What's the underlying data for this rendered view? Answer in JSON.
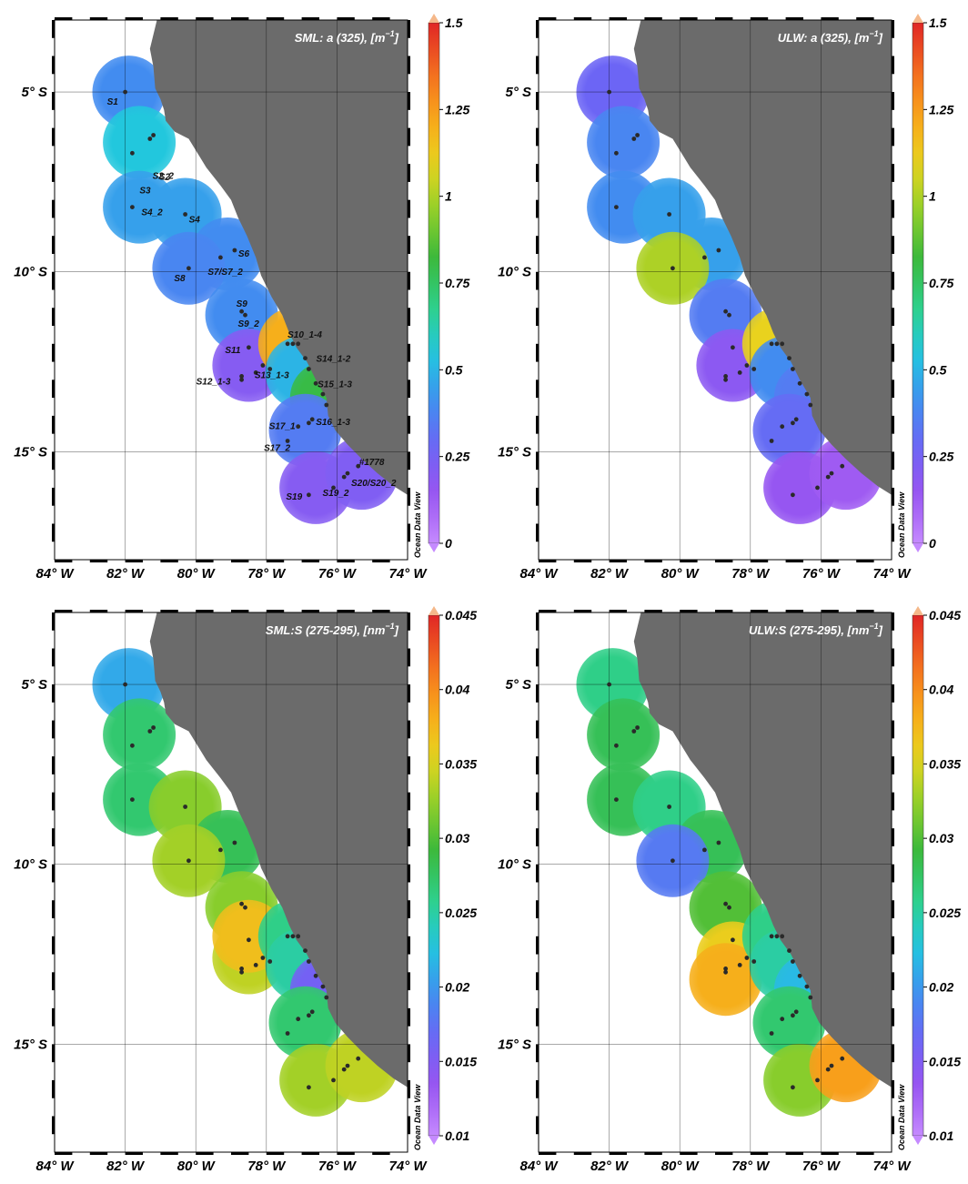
{
  "colors": {
    "land": "#6b6b6b",
    "grid": "#000000",
    "station": "#2a2a2a",
    "ramp": [
      "#c58aff",
      "#9a55f0",
      "#6f63f5",
      "#3f8ff0",
      "#22c7e0",
      "#2fd08a",
      "#39b83c",
      "#8fcf2a",
      "#e8d51e",
      "#f9a61a",
      "#f26a1f",
      "#e02626",
      "#f5b88a"
    ]
  },
  "axes": {
    "x_ticks": [
      "84° W",
      "82° W",
      "80° W",
      "78° W",
      "76° W",
      "74° W"
    ],
    "y_ticks": [
      "5° S",
      "10° S",
      "15° S"
    ]
  },
  "watermark": "Ocean Data View",
  "panels": [
    {
      "id": "sml-a325",
      "title": "SML: a (325), [m",
      "title_sup": "−1",
      "title_end": "]",
      "colorbar": {
        "ticks": [
          "1.5",
          "1.25",
          "1",
          "0.75",
          "0.5",
          "0.25",
          "0"
        ],
        "min": 0,
        "max": 1.5
      },
      "regions": [
        {
          "lon": -81.9,
          "lat": -5.0,
          "v": 0.4
        },
        {
          "lon": -81.6,
          "lat": -6.4,
          "v": 0.55
        },
        {
          "lon": -81.6,
          "lat": -8.2,
          "v": 0.45
        },
        {
          "lon": -80.3,
          "lat": -8.4,
          "v": 0.45
        },
        {
          "lon": -79.1,
          "lat": -9.5,
          "v": 0.4
        },
        {
          "lon": -80.2,
          "lat": -9.9,
          "v": 0.38
        },
        {
          "lon": -78.7,
          "lat": -11.2,
          "v": 0.4
        },
        {
          "lon": -78.5,
          "lat": -12.6,
          "v": 0.2
        },
        {
          "lon": -77.2,
          "lat": -12.0,
          "v": 1.2
        },
        {
          "lon": -77.0,
          "lat": -12.8,
          "v": 0.5
        },
        {
          "lon": -76.3,
          "lat": -13.5,
          "v": 0.8
        },
        {
          "lon": -76.9,
          "lat": -14.4,
          "v": 0.35
        },
        {
          "lon": -76.6,
          "lat": -16.0,
          "v": 0.2
        },
        {
          "lon": -75.3,
          "lat": -15.6,
          "v": 0.22
        }
      ],
      "stations": [
        {
          "name": "S1",
          "lon": -82.0,
          "lat": -5.0
        },
        {
          "name": "S2",
          "lon": -81.3,
          "lat": -6.3
        },
        {
          "name": "S2_2",
          "lon": -81.2,
          "lat": -6.2
        },
        {
          "name": "S3",
          "lon": -81.8,
          "lat": -6.7
        },
        {
          "name": "S4_2",
          "lon": -81.8,
          "lat": -8.2
        },
        {
          "name": "S4",
          "lon": -80.3,
          "lat": -8.4
        },
        {
          "name": "S6",
          "lon": -78.9,
          "lat": -9.4
        },
        {
          "name": "S7/S7_2",
          "lon": -79.3,
          "lat": -9.6
        },
        {
          "name": "S8",
          "lon": -80.2,
          "lat": -9.9
        },
        {
          "name": "S9",
          "lon": -78.7,
          "lat": -11.1
        },
        {
          "name": "S9_2",
          "lon": -78.6,
          "lat": -11.2
        },
        {
          "name": "S11",
          "lon": -78.5,
          "lat": -12.1
        },
        {
          "name": "S10_1-4",
          "lon": -77.4,
          "lat": -12.0
        },
        {
          "name": "",
          "lon": -77.25,
          "lat": -12.0
        },
        {
          "name": "",
          "lon": -77.1,
          "lat": -12.0
        },
        {
          "name": "S14_1-2",
          "lon": -76.9,
          "lat": -12.4
        },
        {
          "name": "",
          "lon": -76.8,
          "lat": -12.7
        },
        {
          "name": "S13_1-3",
          "lon": -78.1,
          "lat": -12.6
        },
        {
          "name": "",
          "lon": -77.9,
          "lat": -12.7
        },
        {
          "name": "",
          "lon": -78.3,
          "lat": -12.8
        },
        {
          "name": "S12_1-3",
          "lon": -78.7,
          "lat": -12.9
        },
        {
          "name": "",
          "lon": -78.7,
          "lat": -13.0
        },
        {
          "name": "S15_1-3",
          "lon": -76.6,
          "lat": -13.1
        },
        {
          "name": "",
          "lon": -76.4,
          "lat": -13.4
        },
        {
          "name": "",
          "lon": -76.3,
          "lat": -13.7
        },
        {
          "name": "S16_1-3",
          "lon": -76.7,
          "lat": -14.1
        },
        {
          "name": "",
          "lon": -76.8,
          "lat": -14.2
        },
        {
          "name": "S17_1",
          "lon": -77.1,
          "lat": -14.3
        },
        {
          "name": "S17_2",
          "lon": -77.4,
          "lat": -14.7
        },
        {
          "name": "#1778",
          "lon": -75.4,
          "lat": -15.4
        },
        {
          "name": "S20/S20_2",
          "lon": -75.7,
          "lat": -15.6
        },
        {
          "name": "",
          "lon": -75.8,
          "lat": -15.7
        },
        {
          "name": "S19_2",
          "lon": -76.1,
          "lat": -16.0
        },
        {
          "name": "S19",
          "lon": -76.8,
          "lat": -16.2
        }
      ]
    },
    {
      "id": "ulw-a325",
      "title": "ULW: a (325), [m",
      "title_sup": "−1",
      "title_end": "]",
      "colorbar": {
        "ticks": [
          "1.5",
          "1.25",
          "1",
          "0.75",
          "0.5",
          "0.25",
          "0"
        ],
        "min": 0,
        "max": 1.5
      },
      "regions": [
        {
          "lon": -81.9,
          "lat": -5.0,
          "v": 0.28
        },
        {
          "lon": -81.6,
          "lat": -6.4,
          "v": 0.38
        },
        {
          "lon": -81.6,
          "lat": -8.2,
          "v": 0.4
        },
        {
          "lon": -80.3,
          "lat": -8.4,
          "v": 0.45
        },
        {
          "lon": -79.1,
          "lat": -9.5,
          "v": 0.45
        },
        {
          "lon": -80.2,
          "lat": -9.9,
          "v": 1.0
        },
        {
          "lon": -78.7,
          "lat": -11.2,
          "v": 0.35
        },
        {
          "lon": -78.5,
          "lat": -12.6,
          "v": 0.18
        },
        {
          "lon": -77.2,
          "lat": -12.0,
          "v": 1.1
        },
        {
          "lon": -77.0,
          "lat": -12.8,
          "v": 0.4
        },
        {
          "lon": -76.3,
          "lat": -13.5,
          "v": 0.35
        },
        {
          "lon": -76.9,
          "lat": -14.4,
          "v": 0.3
        },
        {
          "lon": -76.6,
          "lat": -16.0,
          "v": 0.15
        },
        {
          "lon": -75.3,
          "lat": -15.6,
          "v": 0.12
        }
      ],
      "stations": [
        {
          "name": "",
          "lon": -82.0,
          "lat": -5.0
        },
        {
          "name": "",
          "lon": -81.3,
          "lat": -6.3
        },
        {
          "name": "",
          "lon": -81.2,
          "lat": -6.2
        },
        {
          "name": "",
          "lon": -81.8,
          "lat": -6.7
        },
        {
          "name": "",
          "lon": -81.8,
          "lat": -8.2
        },
        {
          "name": "",
          "lon": -80.3,
          "lat": -8.4
        },
        {
          "name": "",
          "lon": -78.9,
          "lat": -9.4
        },
        {
          "name": "",
          "lon": -79.3,
          "lat": -9.6
        },
        {
          "name": "",
          "lon": -80.2,
          "lat": -9.9
        },
        {
          "name": "",
          "lon": -78.7,
          "lat": -11.1
        },
        {
          "name": "",
          "lon": -78.6,
          "lat": -11.2
        },
        {
          "name": "",
          "lon": -78.5,
          "lat": -12.1
        },
        {
          "name": "",
          "lon": -77.4,
          "lat": -12.0
        },
        {
          "name": "",
          "lon": -77.25,
          "lat": -12.0
        },
        {
          "name": "",
          "lon": -77.1,
          "lat": -12.0
        },
        {
          "name": "",
          "lon": -76.9,
          "lat": -12.4
        },
        {
          "name": "",
          "lon": -76.8,
          "lat": -12.7
        },
        {
          "name": "",
          "lon": -78.1,
          "lat": -12.6
        },
        {
          "name": "",
          "lon": -77.9,
          "lat": -12.7
        },
        {
          "name": "",
          "lon": -78.3,
          "lat": -12.8
        },
        {
          "name": "",
          "lon": -78.7,
          "lat": -12.9
        },
        {
          "name": "",
          "lon": -78.7,
          "lat": -13.0
        },
        {
          "name": "",
          "lon": -76.6,
          "lat": -13.1
        },
        {
          "name": "",
          "lon": -76.4,
          "lat": -13.4
        },
        {
          "name": "",
          "lon": -76.3,
          "lat": -13.7
        },
        {
          "name": "",
          "lon": -76.7,
          "lat": -14.1
        },
        {
          "name": "",
          "lon": -76.8,
          "lat": -14.2
        },
        {
          "name": "",
          "lon": -77.1,
          "lat": -14.3
        },
        {
          "name": "",
          "lon": -77.4,
          "lat": -14.7
        },
        {
          "name": "",
          "lon": -75.4,
          "lat": -15.4
        },
        {
          "name": "",
          "lon": -75.7,
          "lat": -15.6
        },
        {
          "name": "",
          "lon": -75.8,
          "lat": -15.7
        },
        {
          "name": "",
          "lon": -76.1,
          "lat": -16.0
        },
        {
          "name": "",
          "lon": -76.8,
          "lat": -16.2
        }
      ]
    },
    {
      "id": "sml-s275",
      "title": "SML:S (275-295), [nm",
      "title_sup": "−1",
      "title_end": "]",
      "colorbar": {
        "ticks": [
          "0.045",
          "0.04",
          "0.035",
          "0.03",
          "0.025",
          "0.02",
          "0.015",
          "0.01"
        ],
        "min": 0.01,
        "max": 0.045
      },
      "regions": [
        {
          "lon": -81.9,
          "lat": -5.0,
          "v": 0.021
        },
        {
          "lon": -81.6,
          "lat": -6.4,
          "v": 0.027
        },
        {
          "lon": -81.6,
          "lat": -8.2,
          "v": 0.027
        },
        {
          "lon": -80.3,
          "lat": -8.4,
          "v": 0.032
        },
        {
          "lon": -79.1,
          "lat": -9.5,
          "v": 0.028
        },
        {
          "lon": -80.2,
          "lat": -9.9,
          "v": 0.033
        },
        {
          "lon": -78.7,
          "lat": -11.2,
          "v": 0.032
        },
        {
          "lon": -78.5,
          "lat": -12.6,
          "v": 0.034
        },
        {
          "lon": -78.5,
          "lat": -12.0,
          "v": 0.037
        },
        {
          "lon": -77.2,
          "lat": -12.0,
          "v": 0.026
        },
        {
          "lon": -77.0,
          "lat": -12.8,
          "v": 0.025
        },
        {
          "lon": -76.3,
          "lat": -13.5,
          "v": 0.016
        },
        {
          "lon": -76.9,
          "lat": -14.4,
          "v": 0.027
        },
        {
          "lon": -76.6,
          "lat": -16.0,
          "v": 0.033
        },
        {
          "lon": -75.3,
          "lat": -15.6,
          "v": 0.034
        }
      ],
      "stations": [
        {
          "name": "",
          "lon": -82.0,
          "lat": -5.0
        },
        {
          "name": "",
          "lon": -81.3,
          "lat": -6.3
        },
        {
          "name": "",
          "lon": -81.2,
          "lat": -6.2
        },
        {
          "name": "",
          "lon": -81.8,
          "lat": -6.7
        },
        {
          "name": "",
          "lon": -81.8,
          "lat": -8.2
        },
        {
          "name": "",
          "lon": -80.3,
          "lat": -8.4
        },
        {
          "name": "",
          "lon": -78.9,
          "lat": -9.4
        },
        {
          "name": "",
          "lon": -79.3,
          "lat": -9.6
        },
        {
          "name": "",
          "lon": -80.2,
          "lat": -9.9
        },
        {
          "name": "",
          "lon": -78.7,
          "lat": -11.1
        },
        {
          "name": "",
          "lon": -78.6,
          "lat": -11.2
        },
        {
          "name": "",
          "lon": -78.5,
          "lat": -12.1
        },
        {
          "name": "",
          "lon": -77.4,
          "lat": -12.0
        },
        {
          "name": "",
          "lon": -77.25,
          "lat": -12.0
        },
        {
          "name": "",
          "lon": -77.1,
          "lat": -12.0
        },
        {
          "name": "",
          "lon": -76.9,
          "lat": -12.4
        },
        {
          "name": "",
          "lon": -76.8,
          "lat": -12.7
        },
        {
          "name": "",
          "lon": -78.1,
          "lat": -12.6
        },
        {
          "name": "",
          "lon": -77.9,
          "lat": -12.7
        },
        {
          "name": "",
          "lon": -78.3,
          "lat": -12.8
        },
        {
          "name": "",
          "lon": -78.7,
          "lat": -12.9
        },
        {
          "name": "",
          "lon": -78.7,
          "lat": -13.0
        },
        {
          "name": "",
          "lon": -76.6,
          "lat": -13.1
        },
        {
          "name": "",
          "lon": -76.4,
          "lat": -13.4
        },
        {
          "name": "",
          "lon": -76.3,
          "lat": -13.7
        },
        {
          "name": "",
          "lon": -76.7,
          "lat": -14.1
        },
        {
          "name": "",
          "lon": -76.8,
          "lat": -14.2
        },
        {
          "name": "",
          "lon": -77.1,
          "lat": -14.3
        },
        {
          "name": "",
          "lon": -77.4,
          "lat": -14.7
        },
        {
          "name": "",
          "lon": -75.4,
          "lat": -15.4
        },
        {
          "name": "",
          "lon": -75.7,
          "lat": -15.6
        },
        {
          "name": "",
          "lon": -75.8,
          "lat": -15.7
        },
        {
          "name": "",
          "lon": -76.1,
          "lat": -16.0
        },
        {
          "name": "",
          "lon": -76.8,
          "lat": -16.2
        }
      ]
    },
    {
      "id": "ulw-s275",
      "title": "ULW:S (275-295), [nm",
      "title_sup": "−1",
      "title_end": "]",
      "colorbar": {
        "ticks": [
          "0.045",
          "0.04",
          "0.035",
          "0.03",
          "0.025",
          "0.02",
          "0.015",
          "0.01"
        ],
        "min": 0.01,
        "max": 0.045
      },
      "regions": [
        {
          "lon": -81.9,
          "lat": -5.0,
          "v": 0.026
        },
        {
          "lon": -81.6,
          "lat": -6.4,
          "v": 0.028
        },
        {
          "lon": -81.6,
          "lat": -8.2,
          "v": 0.028
        },
        {
          "lon": -80.3,
          "lat": -8.4,
          "v": 0.026
        },
        {
          "lon": -79.1,
          "lat": -9.5,
          "v": 0.028
        },
        {
          "lon": -80.2,
          "lat": -9.9,
          "v": 0.018
        },
        {
          "lon": -78.7,
          "lat": -11.2,
          "v": 0.03
        },
        {
          "lon": -78.5,
          "lat": -12.6,
          "v": 0.036
        },
        {
          "lon": -78.7,
          "lat": -13.2,
          "v": 0.038
        },
        {
          "lon": -77.2,
          "lat": -12.0,
          "v": 0.026
        },
        {
          "lon": -77.0,
          "lat": -12.8,
          "v": 0.025
        },
        {
          "lon": -76.3,
          "lat": -13.5,
          "v": 0.022
        },
        {
          "lon": -76.9,
          "lat": -14.4,
          "v": 0.027
        },
        {
          "lon": -76.6,
          "lat": -16.0,
          "v": 0.032
        },
        {
          "lon": -75.3,
          "lat": -15.6,
          "v": 0.039
        }
      ],
      "stations": [
        {
          "name": "",
          "lon": -82.0,
          "lat": -5.0
        },
        {
          "name": "",
          "lon": -81.3,
          "lat": -6.3
        },
        {
          "name": "",
          "lon": -81.2,
          "lat": -6.2
        },
        {
          "name": "",
          "lon": -81.8,
          "lat": -6.7
        },
        {
          "name": "",
          "lon": -81.8,
          "lat": -8.2
        },
        {
          "name": "",
          "lon": -80.3,
          "lat": -8.4
        },
        {
          "name": "",
          "lon": -78.9,
          "lat": -9.4
        },
        {
          "name": "",
          "lon": -79.3,
          "lat": -9.6
        },
        {
          "name": "",
          "lon": -80.2,
          "lat": -9.9
        },
        {
          "name": "",
          "lon": -78.7,
          "lat": -11.1
        },
        {
          "name": "",
          "lon": -78.6,
          "lat": -11.2
        },
        {
          "name": "",
          "lon": -78.5,
          "lat": -12.1
        },
        {
          "name": "",
          "lon": -77.4,
          "lat": -12.0
        },
        {
          "name": "",
          "lon": -77.25,
          "lat": -12.0
        },
        {
          "name": "",
          "lon": -77.1,
          "lat": -12.0
        },
        {
          "name": "",
          "lon": -76.9,
          "lat": -12.4
        },
        {
          "name": "",
          "lon": -76.8,
          "lat": -12.7
        },
        {
          "name": "",
          "lon": -78.1,
          "lat": -12.6
        },
        {
          "name": "",
          "lon": -77.9,
          "lat": -12.7
        },
        {
          "name": "",
          "lon": -78.3,
          "lat": -12.8
        },
        {
          "name": "",
          "lon": -78.7,
          "lat": -12.9
        },
        {
          "name": "",
          "lon": -78.7,
          "lat": -13.0
        },
        {
          "name": "",
          "lon": -76.6,
          "lat": -13.1
        },
        {
          "name": "",
          "lon": -76.4,
          "lat": -13.4
        },
        {
          "name": "",
          "lon": -76.3,
          "lat": -13.7
        },
        {
          "name": "",
          "lon": -76.7,
          "lat": -14.1
        },
        {
          "name": "",
          "lon": -76.8,
          "lat": -14.2
        },
        {
          "name": "",
          "lon": -77.1,
          "lat": -14.3
        },
        {
          "name": "",
          "lon": -77.4,
          "lat": -14.7
        },
        {
          "name": "",
          "lon": -75.4,
          "lat": -15.4
        },
        {
          "name": "",
          "lon": -75.7,
          "lat": -15.6
        },
        {
          "name": "",
          "lon": -75.8,
          "lat": -15.7
        },
        {
          "name": "",
          "lon": -76.1,
          "lat": -16.0
        },
        {
          "name": "",
          "lon": -76.8,
          "lat": -16.2
        }
      ]
    }
  ]
}
